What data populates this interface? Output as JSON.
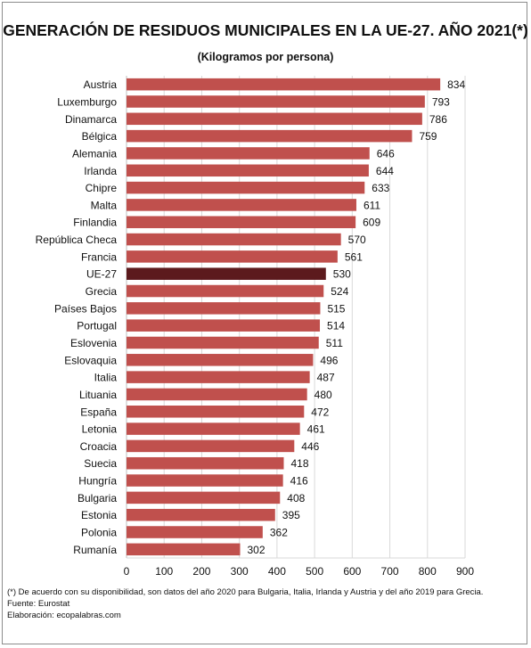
{
  "chart_data": {
    "type": "bar",
    "orientation": "horizontal",
    "title": "GENERACIÓN DE RESIDUOS MUNICIPALES EN LA UE-27. AÑO 2021(*)",
    "subtitle": "(Kilogramos por persona)",
    "categories": [
      "Austria",
      "Luxemburgo",
      "Dinamarca",
      "Bélgica",
      "Alemania",
      "Irlanda",
      "Chipre",
      "Malta",
      "Finlandia",
      "República Checa",
      "Francia",
      "UE-27",
      "Grecia",
      "Países Bajos",
      "Portugal",
      "Eslovenia",
      "Eslovaquia",
      "Italia",
      "Lituania",
      "España",
      "Letonia",
      "Croacia",
      "Suecia",
      "Hungría",
      "Bulgaria",
      "Estonia",
      "Polonia",
      "Rumanía"
    ],
    "values": [
      834,
      793,
      786,
      759,
      646,
      644,
      633,
      611,
      609,
      570,
      561,
      530,
      524,
      515,
      514,
      511,
      496,
      487,
      480,
      472,
      461,
      446,
      418,
      416,
      408,
      395,
      362,
      302
    ],
    "highlight": "UE-27",
    "xlim": [
      0,
      900
    ],
    "xticks": [
      0,
      100,
      200,
      300,
      400,
      500,
      600,
      700,
      800,
      900
    ],
    "grid": true,
    "colors": {
      "bar": "#c0504d",
      "highlight": "#5c1a1d",
      "grid": "#d9d9d9"
    }
  },
  "notes": {
    "footnote": "(*) De acuerdo con su disponibilidad, son datos del año 2020 para Bulgaria, Italia, Irlanda y Austria y del año 2019 para Grecia.",
    "source": "Fuente: Eurostat",
    "credit": "Elaboración: ecopalabras.com"
  }
}
